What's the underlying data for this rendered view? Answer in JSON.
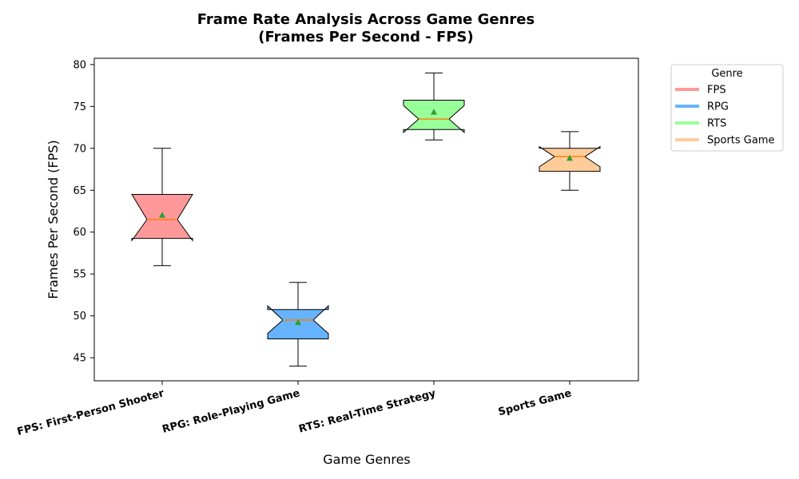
{
  "chart_data": {
    "type": "box",
    "title_line1": "Frame Rate Analysis Across Game Genres",
    "title_line2": "(Frames Per Second - FPS)",
    "xlabel": "Game Genres",
    "ylabel": "Frames Per Second (FPS)",
    "ylim": [
      42.25,
      80.75
    ],
    "yticks": [
      45,
      50,
      55,
      60,
      65,
      70,
      75,
      80
    ],
    "ytick_labels": [
      "45",
      "50",
      "55",
      "60",
      "65",
      "70",
      "75",
      "80"
    ],
    "notched": true,
    "show_means": true,
    "grid": false,
    "legend": {
      "title": "Genre",
      "placement": "outside-top-right",
      "entries": [
        "FPS",
        "RPG",
        "RTS",
        "Sports Game"
      ]
    },
    "categories": [
      "FPS: First-Person Shooter",
      "RPG: Role-Playing Game",
      "RTS: Real-Time Strategy",
      "Sports Game"
    ],
    "series": [
      {
        "name": "FPS",
        "color": "#ff9999",
        "whisker_low": 56,
        "q1": 59.25,
        "median": 61.5,
        "q3": 64.5,
        "whisker_high": 70,
        "mean": 62,
        "notch_low": 59,
        "notch_high": 64.5
      },
      {
        "name": "RPG",
        "color": "#66b3ff",
        "whisker_low": 44,
        "q1": 47.25,
        "median": 49.5,
        "q3": 50.75,
        "whisker_high": 54,
        "mean": 49.2,
        "notch_low": 47.9,
        "notch_high": 51.2
      },
      {
        "name": "RTS",
        "color": "#99ff99",
        "whisker_low": 71,
        "q1": 72.25,
        "median": 73.5,
        "q3": 75.75,
        "whisker_high": 79,
        "mean": 74.3,
        "notch_low": 71.9,
        "notch_high": 75.1
      },
      {
        "name": "Sports Game",
        "color": "#ffcc99",
        "whisker_low": 65,
        "q1": 67.25,
        "median": 69,
        "q3": 70,
        "whisker_high": 72,
        "mean": 68.8,
        "notch_low": 67.8,
        "notch_high": 70.2
      }
    ],
    "median_color": "#ff7f0e",
    "mean_marker_color": "#2ca02c"
  }
}
